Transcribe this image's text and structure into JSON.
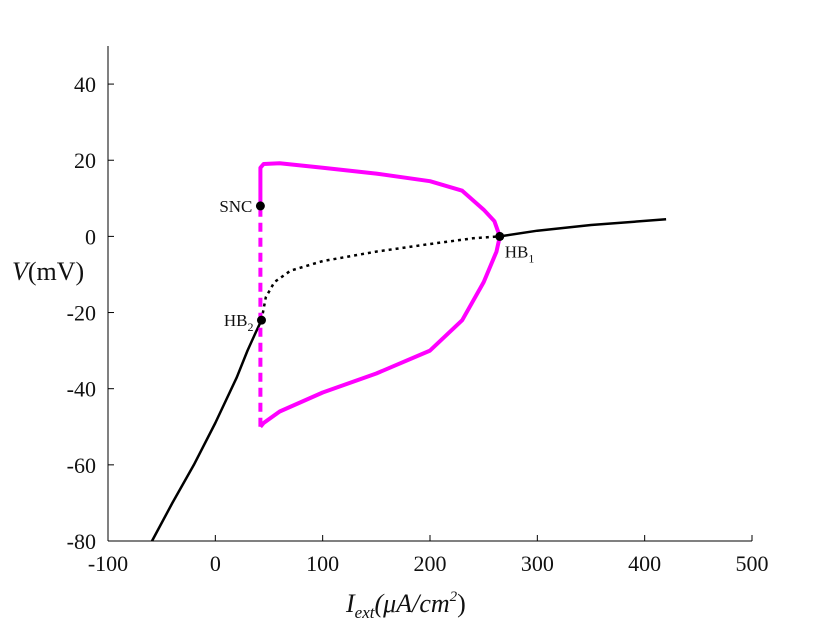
{
  "chart_data": {
    "type": "line",
    "title": "",
    "xlabel": {
      "main": "I",
      "sub": "ext",
      "rest": "(μA/cm",
      "sup": "2",
      "close": ")"
    },
    "ylabel": {
      "main": "V",
      "rest": "(mV)"
    },
    "xlim": [
      -100,
      500
    ],
    "ylim": [
      -80,
      50
    ],
    "xticks": [
      -100,
      0,
      100,
      200,
      300,
      400,
      500
    ],
    "xtick_labels": [
      "-100",
      "0",
      "100",
      "200",
      "300",
      "400",
      "500"
    ],
    "yticks": [
      -80,
      -60,
      -40,
      -20,
      0,
      20,
      40
    ],
    "ytick_labels": [
      "-80",
      "-60",
      "-40",
      "-20",
      "0",
      "20",
      "40"
    ],
    "grid": false,
    "series": [
      {
        "style": "solid",
        "color": "#000000",
        "x": [
          -59,
          -40,
          -20,
          0,
          20,
          30,
          38,
          43
        ],
        "y": [
          -80,
          -70,
          -60,
          -49,
          -37,
          -30,
          -25,
          -22
        ]
      },
      {
        "style": "dotted",
        "color": "#000000",
        "x": [
          43,
          47,
          55,
          70,
          100,
          150,
          200,
          240,
          265
        ],
        "y": [
          -22,
          -16,
          -12,
          -9,
          -6.5,
          -4,
          -2,
          -0.5,
          0
        ]
      },
      {
        "style": "solid",
        "color": "#000000",
        "x": [
          265,
          300,
          350,
          420
        ],
        "y": [
          0,
          1.5,
          3,
          4.5
        ]
      },
      {
        "style": "solid",
        "color": "#ff00ff",
        "x": [
          42,
          42,
          45,
          60,
          100,
          150,
          200,
          230,
          250,
          260,
          265,
          262,
          250,
          230,
          200,
          150,
          100,
          60,
          45,
          42
        ],
        "y": [
          8,
          18,
          19,
          19.2,
          18,
          16.5,
          14.5,
          12,
          7,
          4,
          0,
          -4,
          -12,
          -22,
          -30,
          -36,
          -41,
          -46,
          -49,
          -50
        ]
      },
      {
        "style": "dashed",
        "color": "#ff00ff",
        "x": [
          42,
          42
        ],
        "y": [
          -50,
          8
        ]
      }
    ],
    "points": [
      {
        "label": "SNC",
        "sub": "",
        "x": 42,
        "y": 8,
        "anchor": "left"
      },
      {
        "label": "HB",
        "sub": "2",
        "x": 43,
        "y": -22,
        "anchor": "left"
      },
      {
        "label": "HB",
        "sub": "1",
        "x": 265,
        "y": 0,
        "anchor": "right"
      }
    ]
  }
}
